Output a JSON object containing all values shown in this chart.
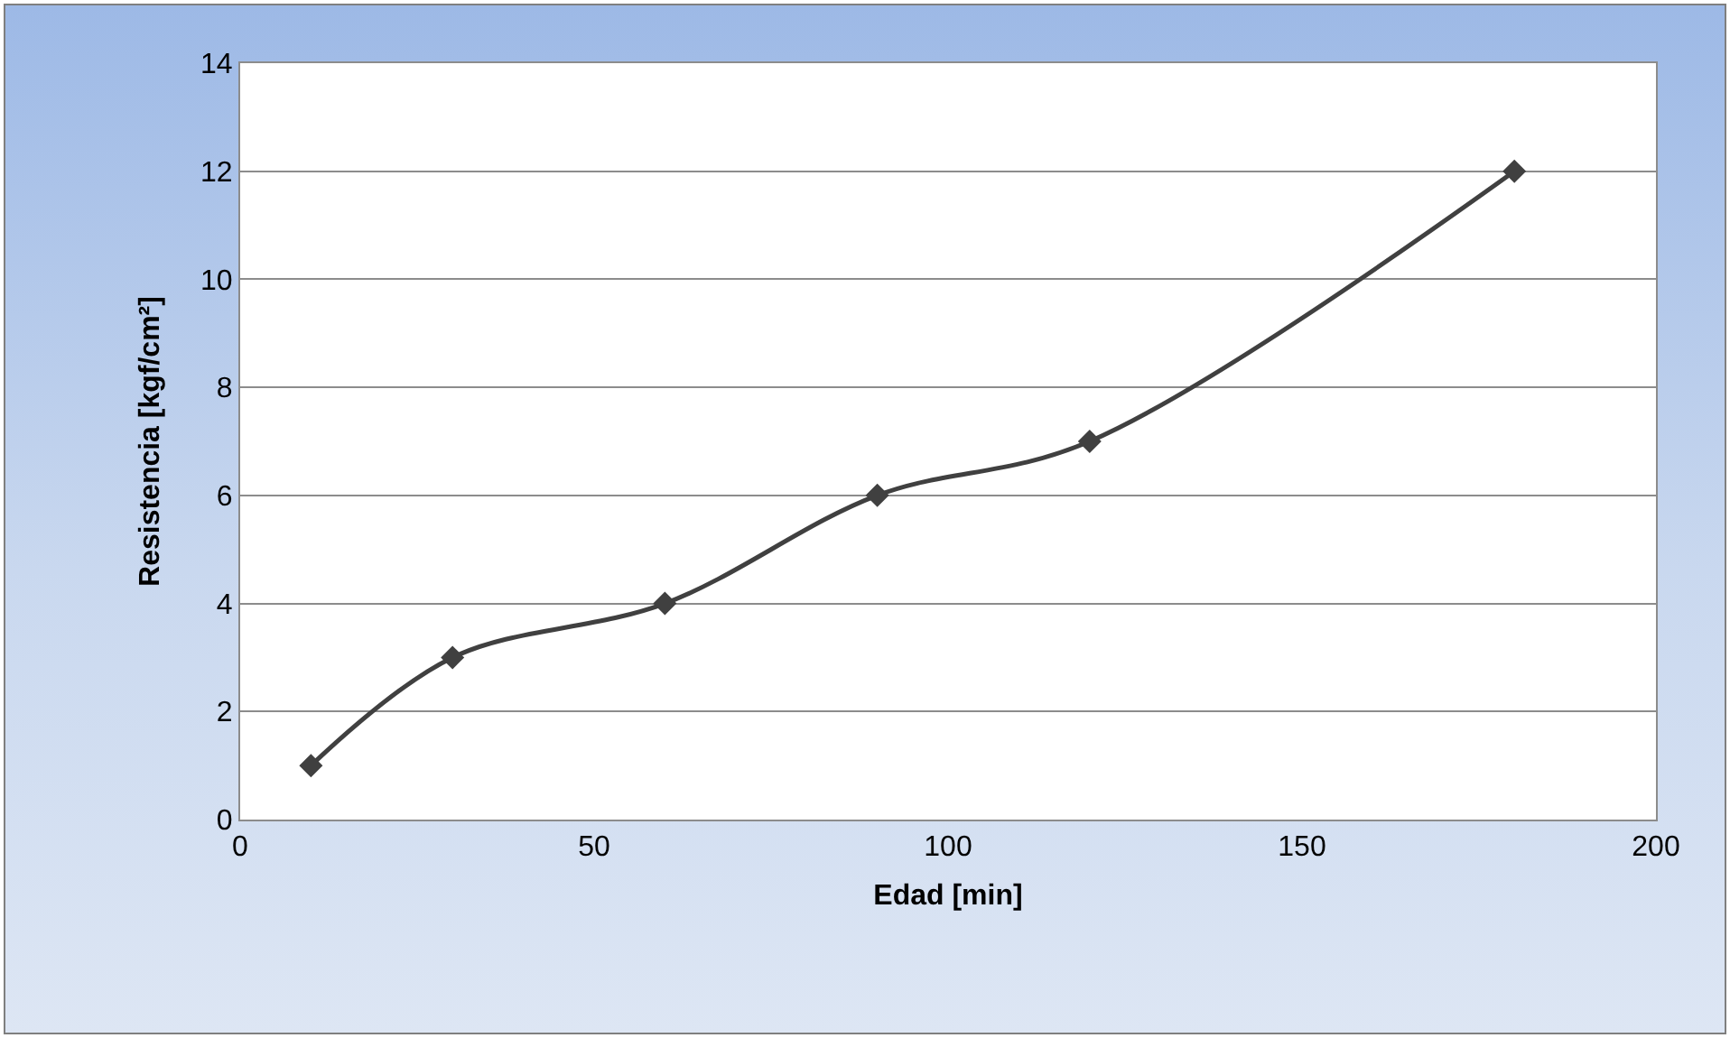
{
  "chart_data": {
    "type": "line",
    "xlabel": "Edad [min]",
    "ylabel": "Resistencia [kgf/cm²]",
    "x": [
      10,
      30,
      60,
      90,
      120,
      180
    ],
    "series": [
      {
        "color": "#404040",
        "values": [
          1,
          3,
          4,
          6,
          7,
          12
        ]
      }
    ],
    "xlim": [
      0,
      200
    ],
    "xticks": [
      0,
      50,
      100,
      150,
      200
    ],
    "ylim": [
      0,
      14
    ],
    "yticks": [
      0,
      2,
      4,
      6,
      8,
      10,
      12,
      14
    ],
    "grid": "y",
    "marker": "diamond",
    "line_style": "solid"
  }
}
